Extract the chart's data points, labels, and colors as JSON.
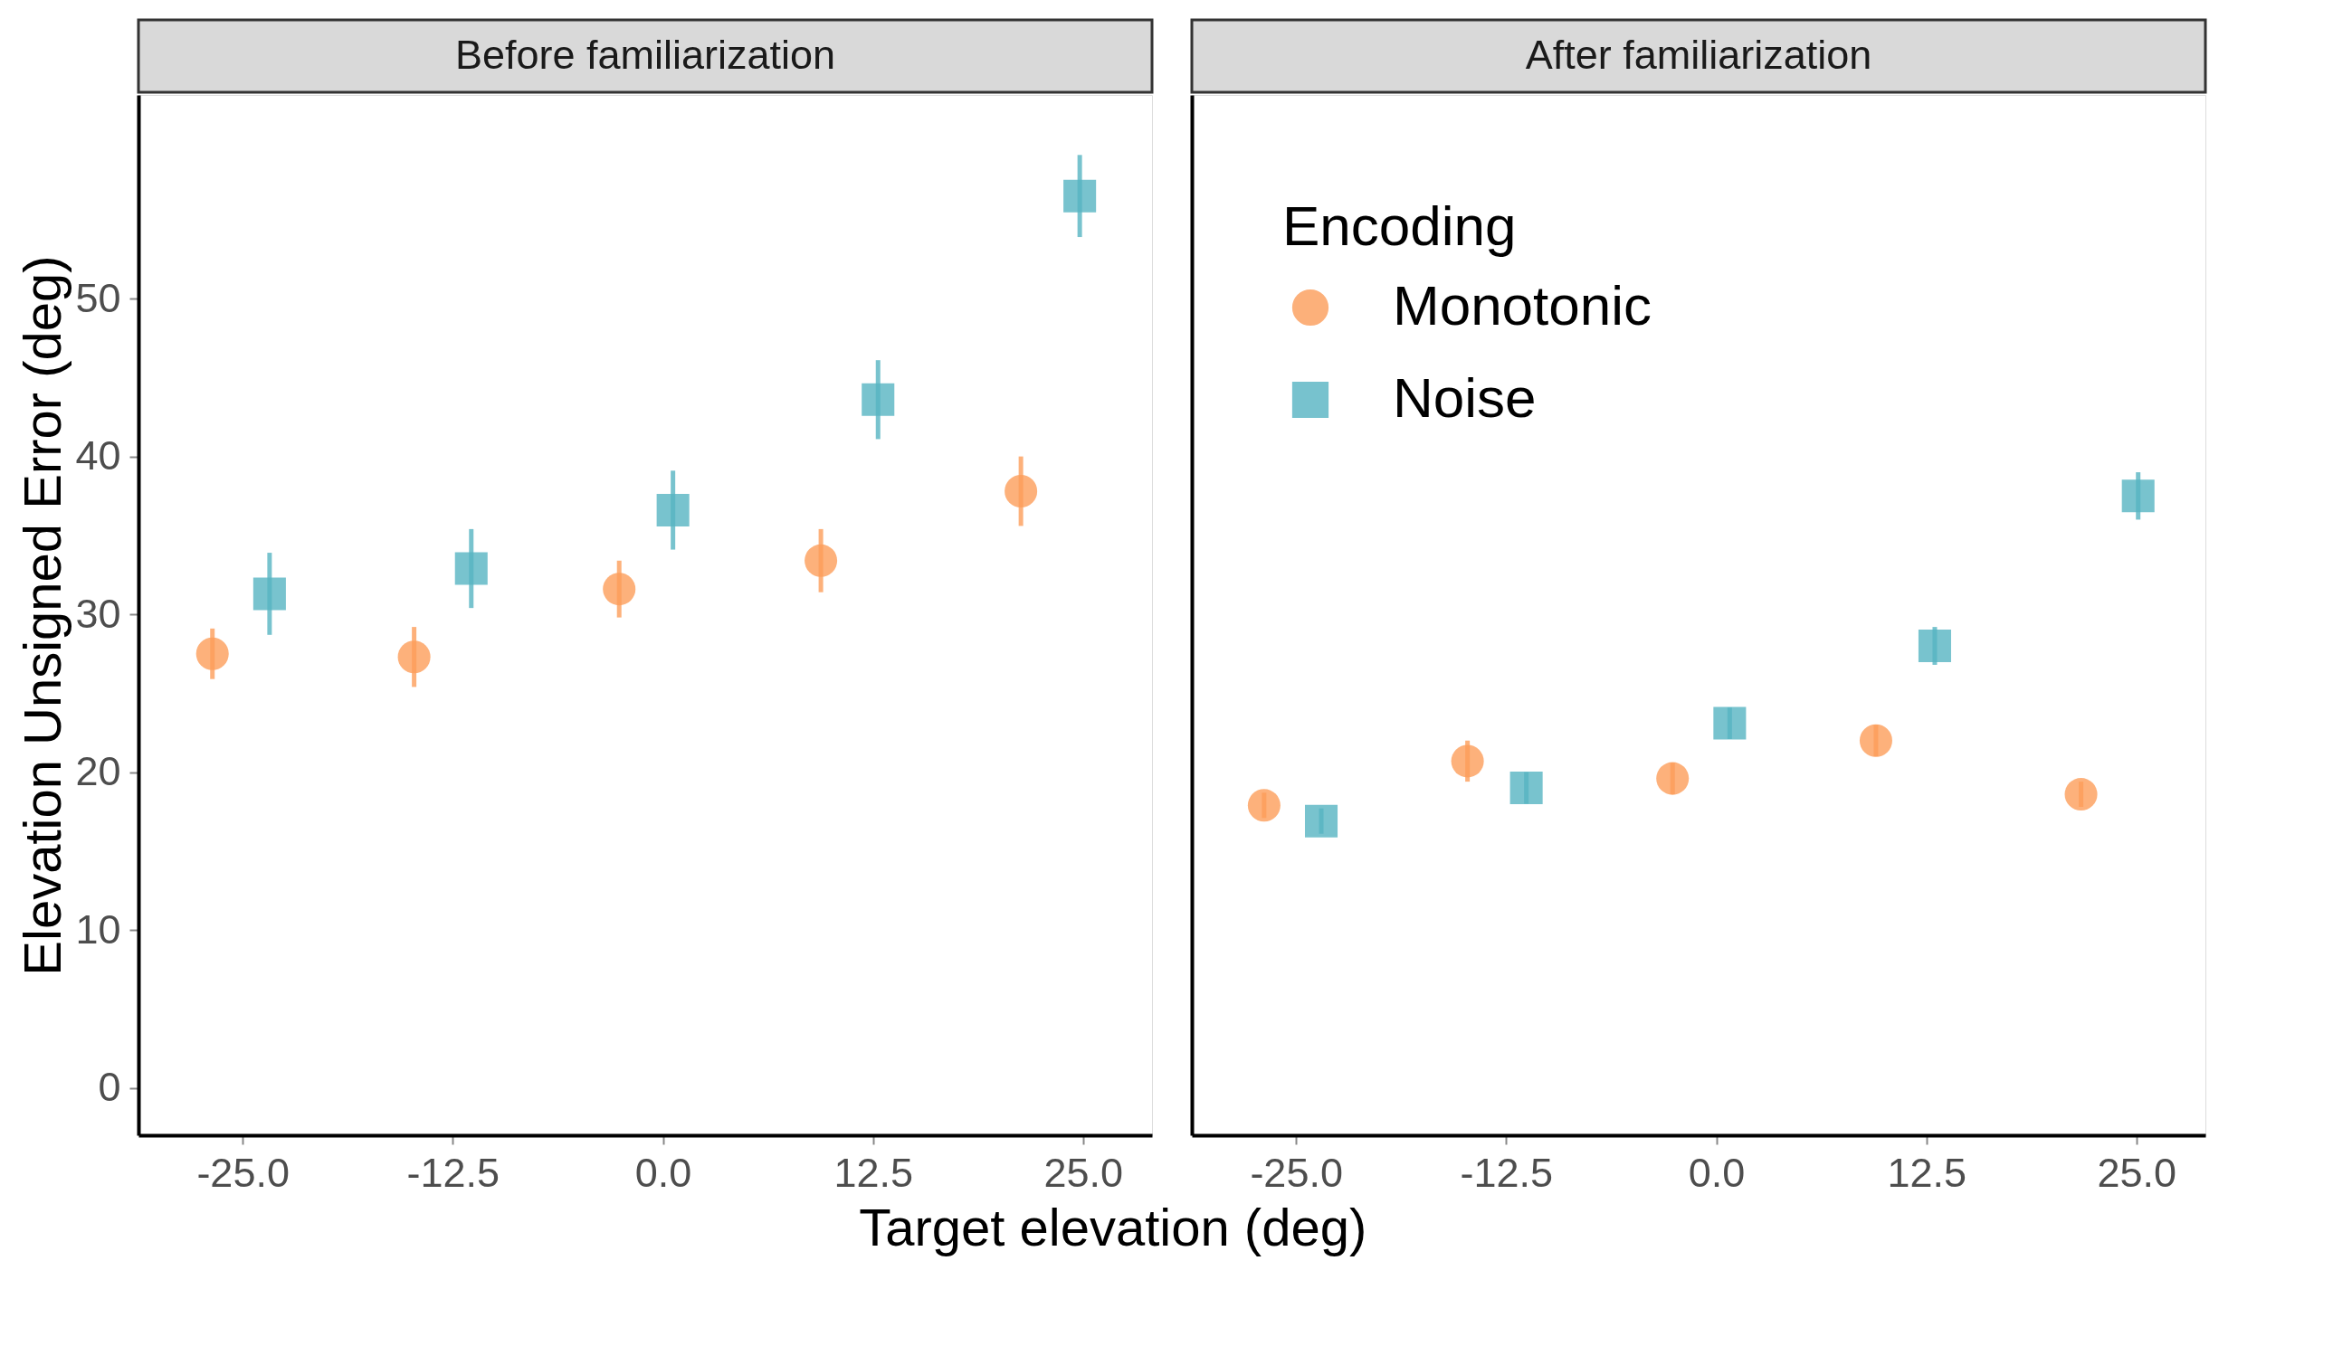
{
  "chart_data": [
    {
      "type": "scatter",
      "title": "Before familiarization",
      "xlabel": "Target elevation (deg)",
      "ylabel": "Elevation Unsigned Error (deg)",
      "xlim": [
        -31.2,
        29.1
      ],
      "ylim": [
        -3,
        62.9
      ],
      "xticks": [
        {
          "value": -25,
          "label": "-25.0"
        },
        {
          "value": -12.5,
          "label": "-12.5"
        },
        {
          "value": 0,
          "label": "0.0"
        },
        12.5,
        {
          "value": 25,
          "label": "25.0"
        }
      ],
      "yticks": [
        0,
        10,
        20,
        30,
        40,
        50
      ],
      "grid": false,
      "legend": false,
      "series": [
        {
          "color": "#fc9d5a",
          "marker": "circle",
          "x": [
            -26.8,
            -14.8,
            -2.6,
            9.4,
            21.3
          ],
          "values": [
            27.5,
            27.3,
            31.6,
            33.4,
            37.8
          ],
          "errors": [
            1.6,
            1.9,
            1.8,
            2.0,
            2.2
          ]
        },
        {
          "color": "#56b4c2",
          "marker": "square",
          "x": [
            -23.4,
            -11.4,
            0.6,
            12.8,
            24.8
          ],
          "values": [
            31.3,
            32.9,
            36.6,
            43.6,
            56.5
          ],
          "errors": [
            2.6,
            2.5,
            2.5,
            2.5,
            2.6
          ]
        }
      ]
    },
    {
      "type": "scatter",
      "title": "After familiarization",
      "legend_title": "Encoding",
      "xlim": [
        -31.2,
        29.1
      ],
      "ylim": [
        -3,
        62.9
      ],
      "xticks": [
        {
          "value": -25,
          "label": "-25.0"
        },
        {
          "value": -12.5,
          "label": "-12.5"
        },
        {
          "value": 0,
          "label": "0.0"
        },
        12.5,
        {
          "value": 25,
          "label": "25.0"
        }
      ],
      "yticks": [
        0,
        10,
        20,
        30,
        40,
        50
      ],
      "tick_labels": "x",
      "grid": false,
      "legend": "top left",
      "series": [
        {
          "name": "Monotonic",
          "color": "#fc9d5a",
          "marker": "circle",
          "x": [
            -26.9,
            -14.8,
            -2.6,
            9.5,
            21.7
          ],
          "values": [
            17.9,
            20.7,
            19.6,
            22.0,
            18.6
          ],
          "errors": [
            0.8,
            1.3,
            1.0,
            1.0,
            0.8
          ]
        },
        {
          "name": "Noise",
          "color": "#56b4c2",
          "marker": "square",
          "x": [
            -23.5,
            -11.3,
            0.8,
            13.0,
            25.1
          ],
          "values": [
            16.9,
            19.0,
            23.1,
            28.0,
            37.5
          ],
          "errors": [
            0.8,
            1.0,
            1.0,
            1.2,
            1.5
          ]
        }
      ]
    }
  ]
}
